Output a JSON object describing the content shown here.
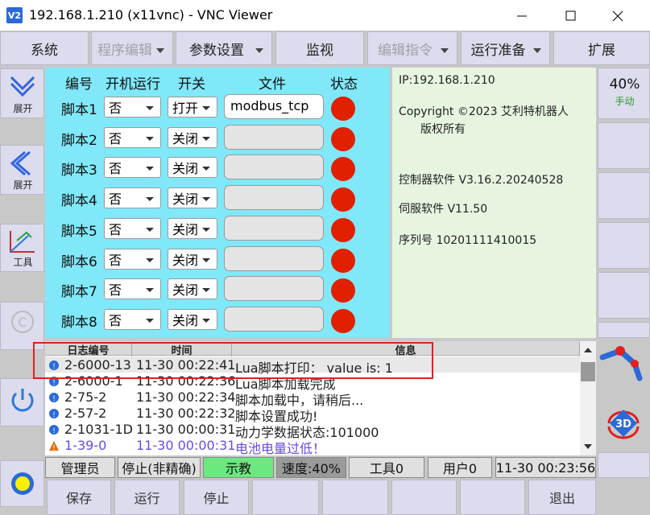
{
  "window": {
    "title": "192.168.1.210 (x11vnc) - VNC Viewer",
    "icon": "V2"
  },
  "menu": [
    {
      "label": "系统",
      "dropdown": false,
      "enabled": true
    },
    {
      "label": "程序编辑",
      "dropdown": true,
      "enabled": false
    },
    {
      "label": "参数设置",
      "dropdown": true,
      "enabled": true
    },
    {
      "label": "监视",
      "dropdown": false,
      "enabled": true
    },
    {
      "label": "编辑指令",
      "dropdown": true,
      "enabled": false
    },
    {
      "label": "运行准备",
      "dropdown": true,
      "enabled": true
    },
    {
      "label": "扩展",
      "dropdown": false,
      "enabled": true
    }
  ],
  "sidebar_left": [
    "展开",
    "展开",
    "工具"
  ],
  "scripts": {
    "headers": [
      "编号",
      "开机运行",
      "开关",
      "文件",
      "状态"
    ],
    "rows": [
      {
        "name": "脚本1",
        "autostart": "否",
        "switch": "打开",
        "file": "modbus_tcp"
      },
      {
        "name": "脚本2",
        "autostart": "否",
        "switch": "关闭"
      },
      {
        "name": "脚本3",
        "autostart": "否",
        "switch": "关闭"
      },
      {
        "name": "脚本4",
        "autostart": "否",
        "switch": "关闭"
      },
      {
        "name": "脚本5",
        "autostart": "否",
        "switch": "关闭"
      },
      {
        "name": "脚本6",
        "autostart": "否",
        "switch": "关闭"
      },
      {
        "name": "脚本7",
        "autostart": "否",
        "switch": "关闭"
      },
      {
        "name": "脚本8",
        "autostart": "否",
        "switch": "关闭"
      }
    ]
  },
  "info": {
    "ip": "IP:192.168.1.210",
    "copyright": "Copyright ©2023 艾利特机器人",
    "rights": "版权所有",
    "controller": "控制器软件 V3.16.2.20240528",
    "servo": "伺服软件 V11.50",
    "serial": "序列号 10201111410015"
  },
  "speed_button": {
    "value": "40%",
    "mode": "手动"
  },
  "log": {
    "headers": [
      "日志编号",
      "时间",
      "信息"
    ],
    "rows": [
      {
        "id": "2-6000-13",
        "time": "11-30 00:22:41",
        "message": "Lua脚本打印： value is: 1",
        "level": "info"
      },
      {
        "id": "2-6000-1",
        "time": "11-30 00:22:36",
        "message": "Lua脚本加载完成",
        "level": "info"
      },
      {
        "id": "2-75-2",
        "time": "11-30 00:22:34",
        "message": "脚本加载中，请稍后...",
        "level": "info"
      },
      {
        "id": "2-57-2",
        "time": "11-30 00:22:32",
        "message": "脚本设置成功!",
        "level": "info"
      },
      {
        "id": "2-1031-1D",
        "time": "11-30 00:00:31",
        "message": "动力学数据状态:101000",
        "level": "info"
      },
      {
        "id": "1-39-0",
        "time": "11-30 00:00:31",
        "message": "电池电量过低！",
        "level": "warning"
      }
    ]
  },
  "status": [
    "管理员",
    "停止(非精确)",
    "示教",
    "速度:40%",
    "工具0",
    "用户0",
    "11-30 00:23:56"
  ],
  "buttons": [
    "保存",
    "运行",
    "停止",
    "退出"
  ]
}
